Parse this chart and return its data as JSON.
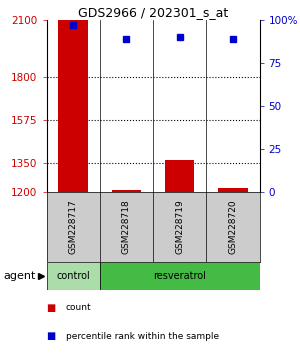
{
  "title": "GDS2966 / 202301_s_at",
  "samples": [
    "GSM228717",
    "GSM228718",
    "GSM228719",
    "GSM228720"
  ],
  "counts": [
    2100,
    1212,
    1370,
    1222
  ],
  "percentiles": [
    97,
    89,
    90,
    89
  ],
  "ylim_left": [
    1200,
    2100
  ],
  "ylim_right": [
    0,
    100
  ],
  "yticks_left": [
    1200,
    1350,
    1575,
    1800,
    2100
  ],
  "yticks_right": [
    0,
    25,
    50,
    75,
    100
  ],
  "ytick_labels_right": [
    "0",
    "25",
    "50",
    "75",
    "100%"
  ],
  "bar_color": "#cc0000",
  "dot_color": "#0000cc",
  "control_color": "#aaddaa",
  "resveratrol_color": "#44bb44",
  "sample_box_color": "#cccccc",
  "agent_label": "agent",
  "legend_items": [
    {
      "label": "count",
      "color": "#cc0000"
    },
    {
      "label": "percentile rank within the sample",
      "color": "#0000cc"
    }
  ],
  "bg_color": "#ffffff",
  "bar_width": 0.55,
  "dot_size": 18
}
